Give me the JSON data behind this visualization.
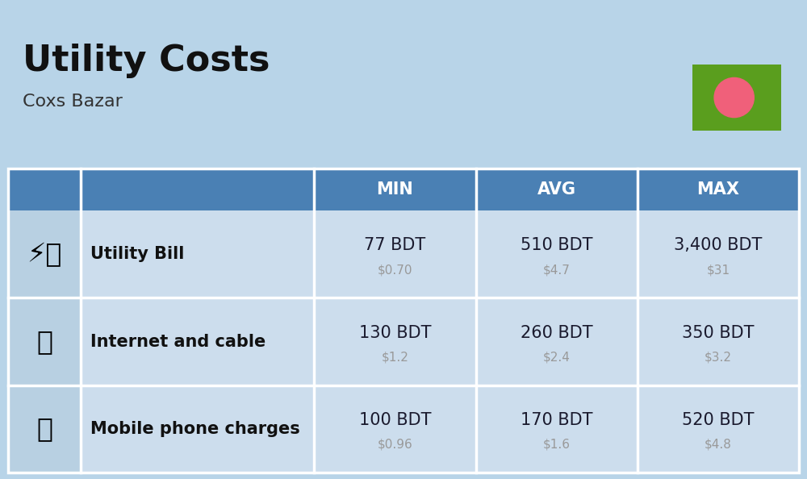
{
  "title": "Utility Costs",
  "subtitle": "Coxs Bazar",
  "background_color": "#b8d4e8",
  "header_bg_color": "#4a80b4",
  "header_text_color": "#ffffff",
  "row_bg_color": "#ccdded",
  "icon_col_color": "#b8d0e2",
  "label_col_color": "#ccdded",
  "data_col_color": "#d6e6f2",
  "separator_color": "#ffffff",
  "col_headers": [
    "MIN",
    "AVG",
    "MAX"
  ],
  "rows": [
    {
      "label": "Utility Bill",
      "min_bdt": "77 BDT",
      "min_usd": "$0.70",
      "avg_bdt": "510 BDT",
      "avg_usd": "$4.7",
      "max_bdt": "3,400 BDT",
      "max_usd": "$31"
    },
    {
      "label": "Internet and cable",
      "min_bdt": "130 BDT",
      "min_usd": "$1.2",
      "avg_bdt": "260 BDT",
      "avg_usd": "$2.4",
      "max_bdt": "350 BDT",
      "max_usd": "$3.2"
    },
    {
      "label": "Mobile phone charges",
      "min_bdt": "100 BDT",
      "min_usd": "$0.96",
      "avg_bdt": "170 BDT",
      "avg_usd": "$1.6",
      "max_bdt": "520 BDT",
      "max_usd": "$4.8"
    }
  ],
  "flag_green": "#5a9e1e",
  "flag_red": "#f0607a",
  "title_color": "#111111",
  "subtitle_color": "#333333",
  "bdt_color": "#1a1a2e",
  "usd_color": "#999999",
  "label_color": "#111111",
  "title_fontsize": 32,
  "subtitle_fontsize": 16,
  "bdt_fontsize": 15,
  "usd_fontsize": 11,
  "label_fontsize": 15,
  "header_fontsize": 15
}
